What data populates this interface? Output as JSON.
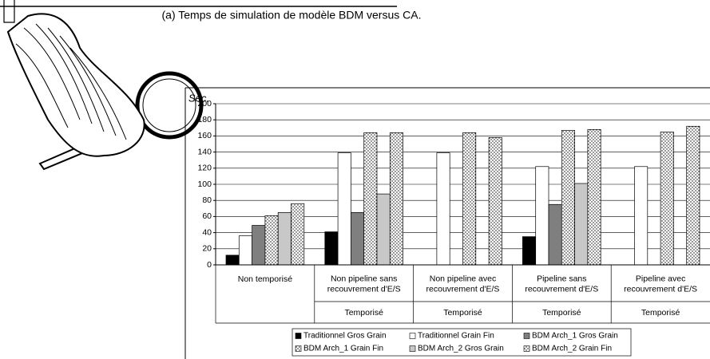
{
  "chart_data": {
    "type": "bar",
    "title": "(a) Temps de simulation de modèle BDM versus CA.",
    "y_label": "Sec.",
    "categories": [
      [
        "Non temporisé"
      ],
      [
        "Non pipeline sans",
        "recouvrement d'E/S"
      ],
      [
        "Non pipeline avec",
        "recouvrement d'E/S"
      ],
      [
        "Pipeline sans",
        "recouvrement d'E/S"
      ],
      [
        "Pipeline avec",
        "recouvrement d'E/S"
      ]
    ],
    "groups": [
      null,
      "Temporisé",
      "Temporisé",
      "Temporisé",
      "Temporisé"
    ],
    "series": [
      {
        "name": "Traditionnel Gros Grain",
        "color": "#000000",
        "values": [
          12,
          41,
          null,
          35,
          null
        ]
      },
      {
        "name": "Traditionnel Grain Fin",
        "color": "#ffffff",
        "values": [
          36,
          139,
          139,
          122,
          122
        ]
      },
      {
        "name": "BDM Arch_1 Gros Grain",
        "color": "#7f7f7f",
        "values": [
          49,
          65,
          null,
          75,
          null
        ]
      },
      {
        "name": "BDM Arch_1 Grain Fin",
        "color": "#ffffff",
        "pattern": "dots",
        "values": [
          61,
          164,
          164,
          167,
          165
        ]
      },
      {
        "name": "BDM Arch_2 Gros Grain",
        "color": "#c8c8c8",
        "values": [
          65,
          88,
          null,
          101,
          null
        ]
      },
      {
        "name": "BDM Arch_2 Grain Fin",
        "color": "#ffffff",
        "pattern": "dots",
        "values": [
          76,
          164,
          158,
          168,
          172
        ]
      }
    ],
    "ylim": [
      0,
      200
    ],
    "yticks": [
      0,
      20,
      40,
      60,
      80,
      100,
      120,
      140,
      160,
      180,
      200
    ],
    "grid": true
  }
}
